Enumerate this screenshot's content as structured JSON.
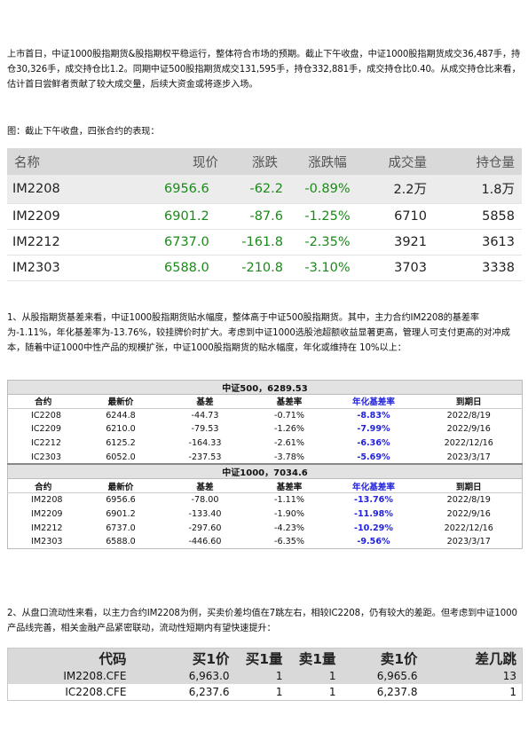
{
  "paragraphs": {
    "p1": "上市首日，中证1000股指期货&股指期权平稳运行，整体符合市场的预期。截止下午收盘，中证1000股指期货成交36,487手，持仓30,326手，成交持仓比1.2。同期中证500股指期货成交131,595手，持仓332,881手，成交持仓比0.40。从成交持仓比来看，估计首日尝鲜者贡献了较大成交量，后续大资金或将逐步入场。",
    "caption": "图：截止下午收盘，四张合约的表现：",
    "p2": "1、从股指期货基差来看，中证1000股指期货贴水幅度，整体高于中证500股指期货。其中，主力合约IM2208的基差率为-1.11%，年化基差率为-13.76%，较挂牌价时扩大。考虑到中证1000选股池超额收益显著更高，管理人可支付更高的对冲成本，随着中证1000中性产品的规模扩张，中证1000股指期货的贴水幅度，年化或维持在 10%以上：",
    "p3": "2、从盘口流动性来看，以主力合约IM2208为例，买卖价差均值在7跳左右，相较IC2208，仍有较大的差距。但考虑到中证1000产品线完善，相关金融产品紧密联动，流动性短期内有望快速提升："
  },
  "quote_table": {
    "headers": [
      "名称",
      "现价",
      "涨跌",
      "涨跌幅",
      "成交量",
      "持仓量"
    ],
    "rows": [
      [
        "IM2208",
        "6956.6",
        "-62.2",
        "-0.89%",
        "2.2万",
        "1.8万"
      ],
      [
        "IM2209",
        "6901.2",
        "-87.6",
        "-1.25%",
        "6710",
        "5858"
      ],
      [
        "IM2212",
        "6737.0",
        "-161.8",
        "-2.35%",
        "3921",
        "3613"
      ],
      [
        "IM2303",
        "6588.0",
        "-210.8",
        "-3.10%",
        "3703",
        "3338"
      ]
    ]
  },
  "basis_table": {
    "headers": [
      "合约",
      "最新价",
      "基差",
      "基差率",
      "年化基差率",
      "到期日"
    ],
    "groups": [
      {
        "title": "中证500，6289.53",
        "rows": [
          [
            "IC2208",
            "6244.8",
            "-44.73",
            "-0.71%",
            "-8.83%",
            "2022/8/19"
          ],
          [
            "IC2209",
            "6210.0",
            "-79.53",
            "-1.26%",
            "-7.99%",
            "2022/9/16"
          ],
          [
            "IC2212",
            "6125.2",
            "-164.33",
            "-2.61%",
            "-6.36%",
            "2022/12/16"
          ],
          [
            "IC2303",
            "6052.0",
            "-237.53",
            "-3.78%",
            "-5.69%",
            "2023/3/17"
          ]
        ]
      },
      {
        "title": "中证1000，7034.6",
        "rows": [
          [
            "IM2208",
            "6956.6",
            "-78.00",
            "-1.11%",
            "-13.76%",
            "2022/8/19"
          ],
          [
            "IM2209",
            "6901.2",
            "-133.40",
            "-1.90%",
            "-11.98%",
            "2022/9/16"
          ],
          [
            "IM2212",
            "6737.0",
            "-297.60",
            "-4.23%",
            "-10.29%",
            "2022/12/16"
          ],
          [
            "IM2303",
            "6588.0",
            "-446.60",
            "-6.35%",
            "-9.56%",
            "2023/3/17"
          ]
        ]
      }
    ],
    "highlight_color": "#2222dd"
  },
  "orderbook_table": {
    "headers": [
      "代码",
      "买1价",
      "买1量",
      "卖1量",
      "卖1价",
      "差几跳"
    ],
    "rows": [
      [
        "IM2208.CFE",
        "6,963.0",
        "1",
        "1",
        "6,965.6",
        "13"
      ],
      [
        "IC2208.CFE",
        "6,237.6",
        "1",
        "1",
        "6,237.8",
        "1"
      ]
    ]
  },
  "colors": {
    "positive_price": "#1a8a1a",
    "header_bg": "#d9d9d9"
  }
}
